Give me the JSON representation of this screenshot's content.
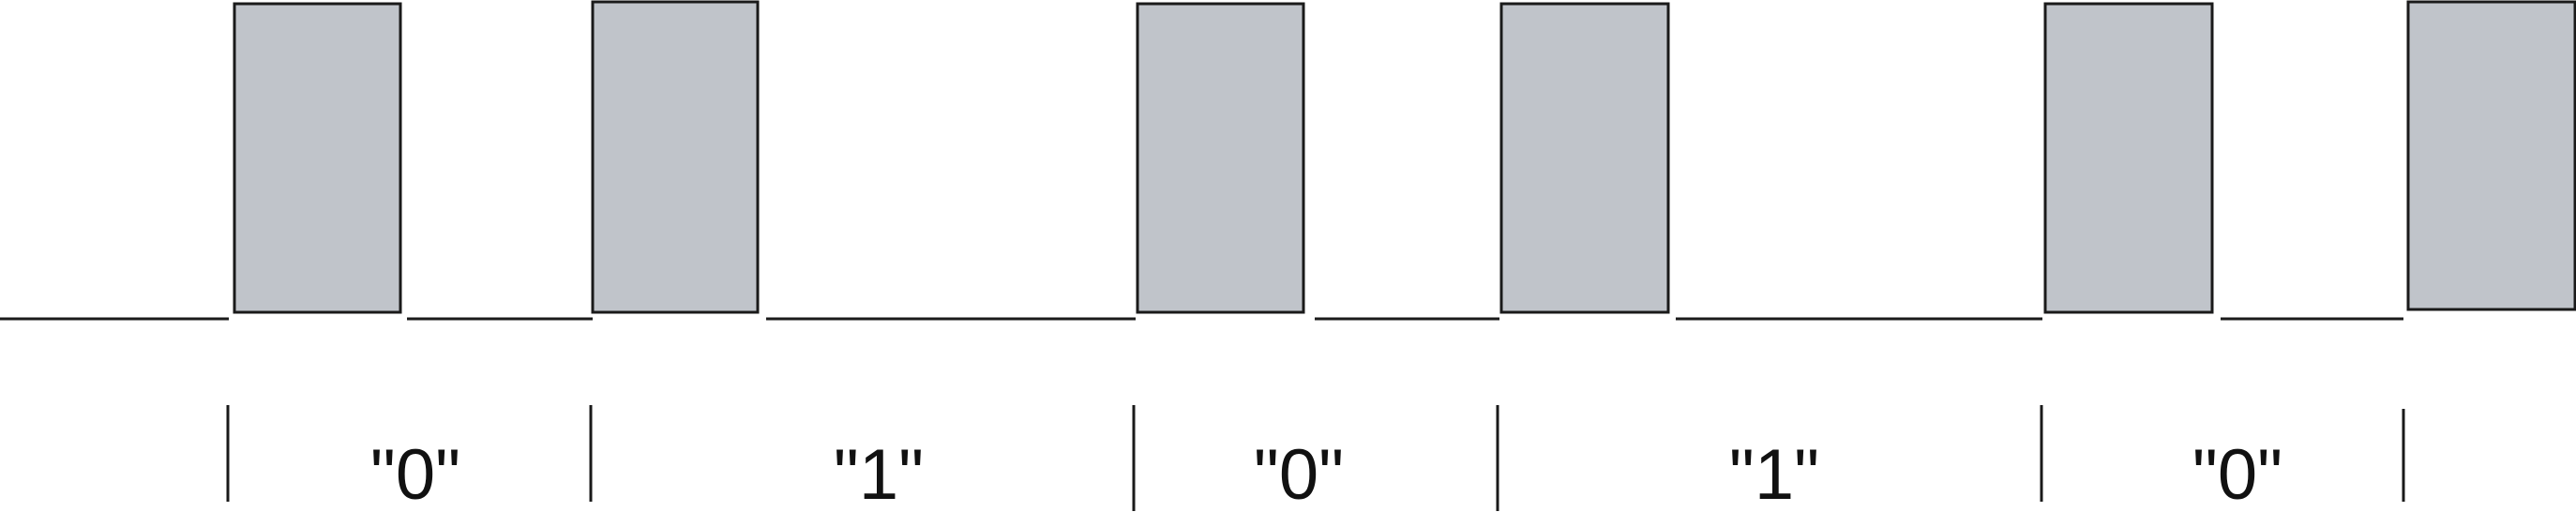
{
  "diagram": {
    "colors": {
      "pulse_fill": "#c0c4ca",
      "stroke": "#1a1a1a"
    },
    "bits": [
      {
        "label": "\"0\""
      },
      {
        "label": "\"1\""
      },
      {
        "label": "\"0\""
      },
      {
        "label": "\"1\""
      },
      {
        "label": "\"0\""
      }
    ]
  }
}
